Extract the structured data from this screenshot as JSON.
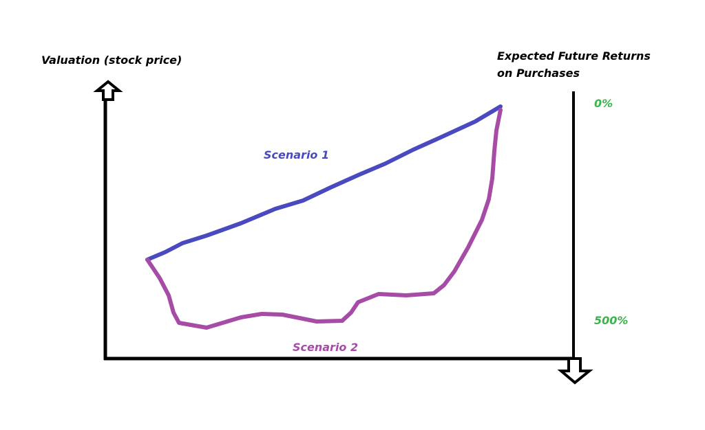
{
  "axes": {
    "left_label": "Valuation (stock price)",
    "right_label": [
      "Expected Future Returns",
      "on Purchases"
    ],
    "right_ticks": [
      "0%",
      "500%"
    ]
  },
  "curves": [
    {
      "label": "Scenario 1"
    },
    {
      "label": "Scenario 2"
    }
  ]
}
